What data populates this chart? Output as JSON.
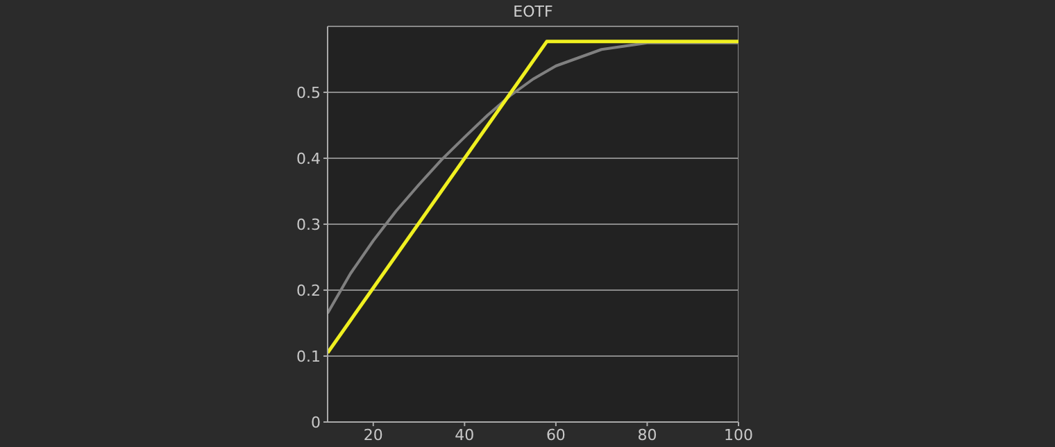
{
  "chart_data": {
    "type": "line",
    "title": "EOTF",
    "xlim": [
      10,
      100
    ],
    "xticks": [
      20,
      40,
      60,
      80,
      100
    ],
    "ylim": [
      0,
      0.6
    ],
    "yticks": [
      0,
      0.1,
      0.2,
      0.3,
      0.4,
      0.5
    ],
    "grid": "y",
    "series": [
      {
        "color": "#808080",
        "x": [
          10,
          15,
          20,
          25,
          30,
          35,
          40,
          45,
          50,
          55,
          60,
          70,
          80,
          100
        ],
        "values": [
          0.165,
          0.225,
          0.275,
          0.32,
          0.36,
          0.398,
          0.432,
          0.465,
          0.495,
          0.52,
          0.54,
          0.565,
          0.575,
          0.575
        ]
      },
      {
        "color": "#f0f020",
        "x": [
          10,
          58,
          100
        ],
        "values": [
          0.105,
          0.577,
          0.577
        ]
      }
    ]
  }
}
